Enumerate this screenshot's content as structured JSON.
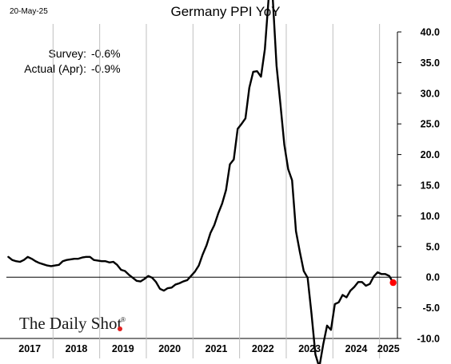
{
  "header": {
    "date_stamp": "20-May-25",
    "title": "Germany PPI YoY"
  },
  "annotations": {
    "survey_label": "Survey:",
    "survey_value": "-0.6%",
    "actual_label": "Actual (Apr):",
    "actual_value": "-0.9%"
  },
  "logo": {
    "text": "The Daily Shot",
    "mark": "®"
  },
  "colors": {
    "line": "#000000",
    "marker": "#ff0000",
    "zero_line": "#000000",
    "axis": "#000000",
    "divider": "#bfbfbf"
  },
  "chart_data": {
    "type": "line",
    "title": "Germany PPI YoY",
    "ylim": [
      -10,
      40
    ],
    "yticks": [
      -10,
      -5,
      0,
      5,
      10,
      15,
      20,
      25,
      30,
      35,
      40
    ],
    "ytick_labels": [
      "-10.0",
      "-5.0",
      "0.0",
      "5.0",
      "10.0",
      "15.0",
      "20.0",
      "25.0",
      "30.0",
      "35.0",
      "40.0"
    ],
    "y_axis_position": "right",
    "x_start": "2017-01",
    "x_end": "2025-04",
    "year_labels": [
      "2017",
      "2018",
      "2019",
      "2020",
      "2021",
      "2022",
      "2023",
      "2024",
      "2025"
    ],
    "grid": false,
    "last_point": {
      "x": "2025-04",
      "y": -0.9
    },
    "series": [
      {
        "x": [
          "2017-01",
          "2017-02",
          "2017-03",
          "2017-04",
          "2017-05",
          "2017-06",
          "2017-07",
          "2017-08",
          "2017-09",
          "2017-10",
          "2017-11",
          "2017-12",
          "2018-01",
          "2018-02",
          "2018-03",
          "2018-04",
          "2018-05",
          "2018-06",
          "2018-07",
          "2018-08",
          "2018-09",
          "2018-10",
          "2018-11",
          "2018-12",
          "2019-01",
          "2019-02",
          "2019-03",
          "2019-04",
          "2019-05",
          "2019-06",
          "2019-07",
          "2019-08",
          "2019-09",
          "2019-10",
          "2019-11",
          "2019-12",
          "2020-01",
          "2020-02",
          "2020-03",
          "2020-04",
          "2020-05",
          "2020-06",
          "2020-07",
          "2020-08",
          "2020-09",
          "2020-10",
          "2020-11",
          "2020-12",
          "2021-01",
          "2021-02",
          "2021-03",
          "2021-04",
          "2021-05",
          "2021-06",
          "2021-07",
          "2021-08",
          "2021-09",
          "2021-10",
          "2021-11",
          "2021-12",
          "2022-01",
          "2022-02",
          "2022-03",
          "2022-04",
          "2022-05",
          "2022-06",
          "2022-07",
          "2022-08",
          "2022-09",
          "2022-10",
          "2022-11",
          "2022-12",
          "2023-01",
          "2023-02",
          "2023-03",
          "2023-04",
          "2023-05",
          "2023-06",
          "2023-07",
          "2023-08",
          "2023-09",
          "2023-10",
          "2023-11",
          "2023-12",
          "2024-01",
          "2024-02",
          "2024-03",
          "2024-04",
          "2024-05",
          "2024-06",
          "2024-07",
          "2024-08",
          "2024-09",
          "2024-10",
          "2024-11",
          "2024-12",
          "2025-01",
          "2025-02",
          "2025-03",
          "2025-04"
        ],
        "values": [
          3.3,
          2.8,
          2.6,
          2.5,
          2.8,
          3.3,
          3.0,
          2.6,
          2.3,
          2.1,
          1.9,
          1.8,
          1.9,
          2.0,
          2.6,
          2.8,
          2.9,
          3.0,
          3.0,
          3.2,
          3.3,
          3.3,
          2.8,
          2.7,
          2.6,
          2.6,
          2.4,
          2.5,
          2.0,
          1.2,
          1.0,
          0.4,
          -0.1,
          -0.6,
          -0.7,
          -0.3,
          0.2,
          -0.1,
          -0.8,
          -1.9,
          -2.2,
          -1.8,
          -1.7,
          -1.2,
          -1.0,
          -0.7,
          -0.5,
          0.2,
          0.9,
          1.9,
          3.7,
          5.2,
          7.2,
          8.5,
          10.4,
          12.0,
          14.2,
          18.4,
          19.2,
          24.2,
          25.0,
          25.9,
          30.9,
          33.5,
          33.6,
          32.7,
          37.2,
          45.8,
          45.8,
          34.5,
          28.2,
          21.6,
          17.6,
          15.8,
          7.5,
          4.1,
          1.0,
          -0.1,
          -6.0,
          -12.6,
          -14.7,
          -11.0,
          -7.9,
          -8.6,
          -4.4,
          -4.1,
          -2.9,
          -3.3,
          -2.2,
          -1.6,
          -0.8,
          -0.8,
          -1.4,
          -1.1,
          0.1,
          0.8,
          0.5,
          0.5,
          0.2,
          -0.9
        ]
      }
    ]
  }
}
